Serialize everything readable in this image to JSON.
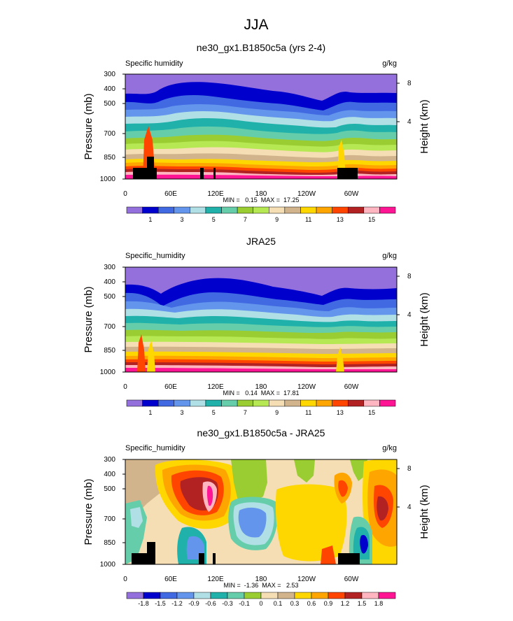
{
  "page_title": "JJA",
  "chart_data": [
    {
      "type": "heatmap",
      "title": "ne30_gx1.B1850c5a (yrs 2-4)",
      "left_label": "Specific humidity",
      "units": "g/kg",
      "ylabel": "Pressure (mb)",
      "y2label": "Height (km)",
      "pressure_ticks": [
        "300",
        "400",
        "500",
        "700",
        "850",
        "1000"
      ],
      "height_ticks": [
        "8",
        "4"
      ],
      "lon_ticks": [
        "0",
        "60E",
        "120E",
        "180",
        "120W",
        "60W"
      ],
      "stats": "MIN =   0.15  MAX =  17.25",
      "min": 0.15,
      "max": 17.25,
      "colorbar_labels": [
        "1",
        "3",
        "5",
        "7",
        "9",
        "11",
        "13",
        "15"
      ],
      "colorbar_colors": [
        "#9370DB",
        "#0000CD",
        "#4169E1",
        "#6495ED",
        "#B0E0E6",
        "#20B2AA",
        "#66CDAA",
        "#9ACD32",
        "#B5E853",
        "#F5DEB3",
        "#D2B48C",
        "#FFD700",
        "#FFA500",
        "#FF4500",
        "#B22222",
        "#FFB6C1",
        "#FF1493"
      ]
    },
    {
      "type": "heatmap",
      "title": "JRA25",
      "left_label": "Specific_humidity",
      "units": "g/kg",
      "ylabel": "Pressure (mb)",
      "y2label": "Height (km)",
      "pressure_ticks": [
        "300",
        "400",
        "500",
        "700",
        "850",
        "1000"
      ],
      "height_ticks": [
        "8",
        "4"
      ],
      "lon_ticks": [
        "0",
        "60E",
        "120E",
        "180",
        "120W",
        "60W"
      ],
      "stats": "MIN =   0.14  MAX =  17.81",
      "min": 0.14,
      "max": 17.81,
      "colorbar_labels": [
        "1",
        "3",
        "5",
        "7",
        "9",
        "11",
        "13",
        "15"
      ],
      "colorbar_colors": [
        "#9370DB",
        "#0000CD",
        "#4169E1",
        "#6495ED",
        "#B0E0E6",
        "#20B2AA",
        "#66CDAA",
        "#9ACD32",
        "#B5E853",
        "#F5DEB3",
        "#D2B48C",
        "#FFD700",
        "#FFA500",
        "#FF4500",
        "#B22222",
        "#FFB6C1",
        "#FF1493"
      ]
    },
    {
      "type": "heatmap",
      "title": "ne30_gx1.B1850c5a - JRA25",
      "left_label": "Specific_humidity",
      "units": "g/kg",
      "ylabel": "Pressure (mb)",
      "y2label": "Height (km)",
      "pressure_ticks": [
        "300",
        "400",
        "500",
        "700",
        "850",
        "1000"
      ],
      "height_ticks": [
        "8",
        "4"
      ],
      "lon_ticks": [
        "0",
        "60E",
        "120E",
        "180",
        "120W",
        "60W"
      ],
      "stats": "MIN =  -1.36  MAX =   2.53",
      "min": -1.36,
      "max": 2.53,
      "colorbar_labels": [
        "-1.8",
        "-1.5",
        "-1.2",
        "-0.9",
        "-0.6",
        "-0.3",
        "-0.1",
        "0",
        "0.1",
        "0.3",
        "0.6",
        "0.9",
        "1.2",
        "1.5",
        "1.8"
      ],
      "colorbar_colors": [
        "#9370DB",
        "#0000CD",
        "#4169E1",
        "#6495ED",
        "#B0E0E6",
        "#20B2AA",
        "#66CDAA",
        "#9ACD32",
        "#F5DEB3",
        "#D2B48C",
        "#FFD700",
        "#FFA500",
        "#FF4500",
        "#B22222",
        "#FFB6C1",
        "#FF1493"
      ]
    }
  ]
}
